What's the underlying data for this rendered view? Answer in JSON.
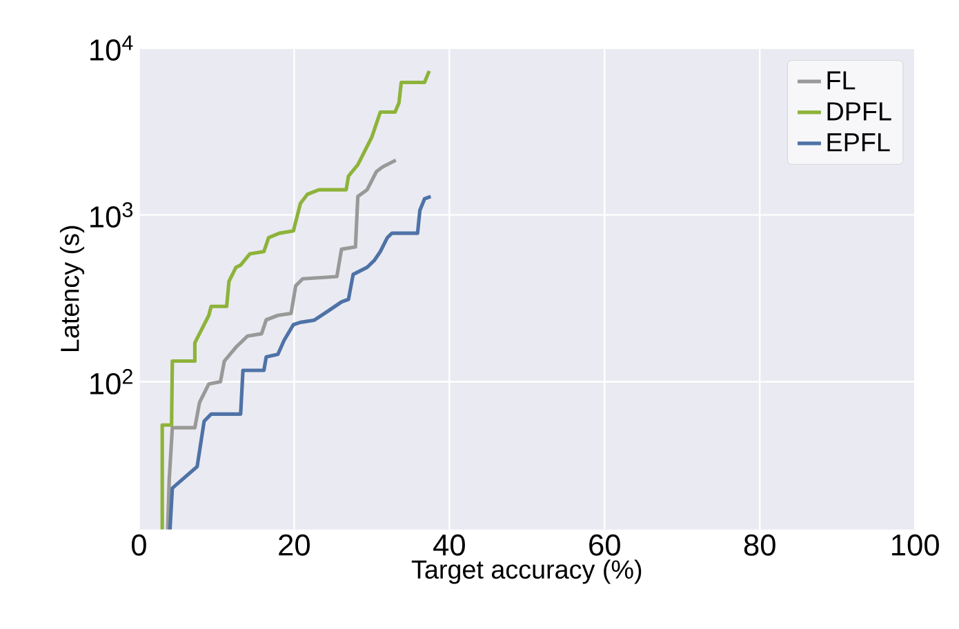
{
  "chart_data": {
    "type": "line",
    "xlabel": "Target accuracy (%)",
    "ylabel": "Latency (s)",
    "xlim": [
      0,
      100
    ],
    "xticks": [
      0,
      20,
      40,
      60,
      80,
      100
    ],
    "ylim": [
      13,
      10000
    ],
    "yticks": [
      {
        "value": 100,
        "label": "10$^{2}$"
      },
      {
        "value": 1000,
        "label": "10$^{3}$"
      },
      {
        "value": 10000,
        "label": "10$^{4}$"
      }
    ],
    "log": "y",
    "grid": true,
    "legend": "top right",
    "line_style": "solid",
    "series": [
      {
        "name": "FL",
        "color": "#999999",
        "x": [
          3.7,
          3.9,
          4.3,
          7.2,
          7.8,
          9.0,
          10.5,
          11.0,
          12.5,
          14.0,
          15.8,
          16.4,
          17.9,
          19.6,
          20.2,
          21.1,
          25.5,
          26.1,
          27.9,
          28.2,
          29.4,
          30.6,
          31.4,
          33.1
        ],
        "values": [
          13,
          26,
          53,
          53,
          75,
          97,
          100,
          133,
          161,
          188,
          194,
          235,
          250,
          257,
          376,
          414,
          427,
          623,
          643,
          1290,
          1415,
          1820,
          1940,
          2130
        ]
      },
      {
        "name": "DPFL",
        "color": "#8db33a",
        "x": [
          3.0,
          3.0,
          4.2,
          4.3,
          7.2,
          7.2,
          9.0,
          9.3,
          11.3,
          11.6,
          12.5,
          13.1,
          14.3,
          16.1,
          16.7,
          18.1,
          19.9,
          20.8,
          21.7,
          23.2,
          26.7,
          27.0,
          28.2,
          29.4,
          30.0,
          31.1,
          33.0,
          33.5,
          33.8,
          36.8,
          37.4
        ],
        "values": [
          13,
          55,
          55,
          133,
          133,
          171,
          250,
          283,
          283,
          400,
          485,
          500,
          585,
          603,
          730,
          777,
          802,
          1171,
          1329,
          1415,
          1415,
          1710,
          2000,
          2575,
          2925,
          4135,
          4135,
          4690,
          6230,
          6230,
          7300
        ]
      },
      {
        "name": "EPFL",
        "color": "#4e72a6",
        "x": [
          4.0,
          4.3,
          7.5,
          8.4,
          9.3,
          13.1,
          13.4,
          16.1,
          16.4,
          17.9,
          18.7,
          19.9,
          20.8,
          22.6,
          24.4,
          26.1,
          27.0,
          27.6,
          29.4,
          30.3,
          31.1,
          32.0,
          32.6,
          35.9,
          36.2,
          36.8,
          37.6
        ],
        "values": [
          13,
          23,
          31,
          58,
          64,
          64,
          117,
          117,
          141,
          146,
          177,
          220,
          227,
          234,
          266,
          301,
          312,
          440,
          485,
          532,
          603,
          730,
          777,
          777,
          1065,
          1250,
          1290
        ]
      }
    ]
  }
}
